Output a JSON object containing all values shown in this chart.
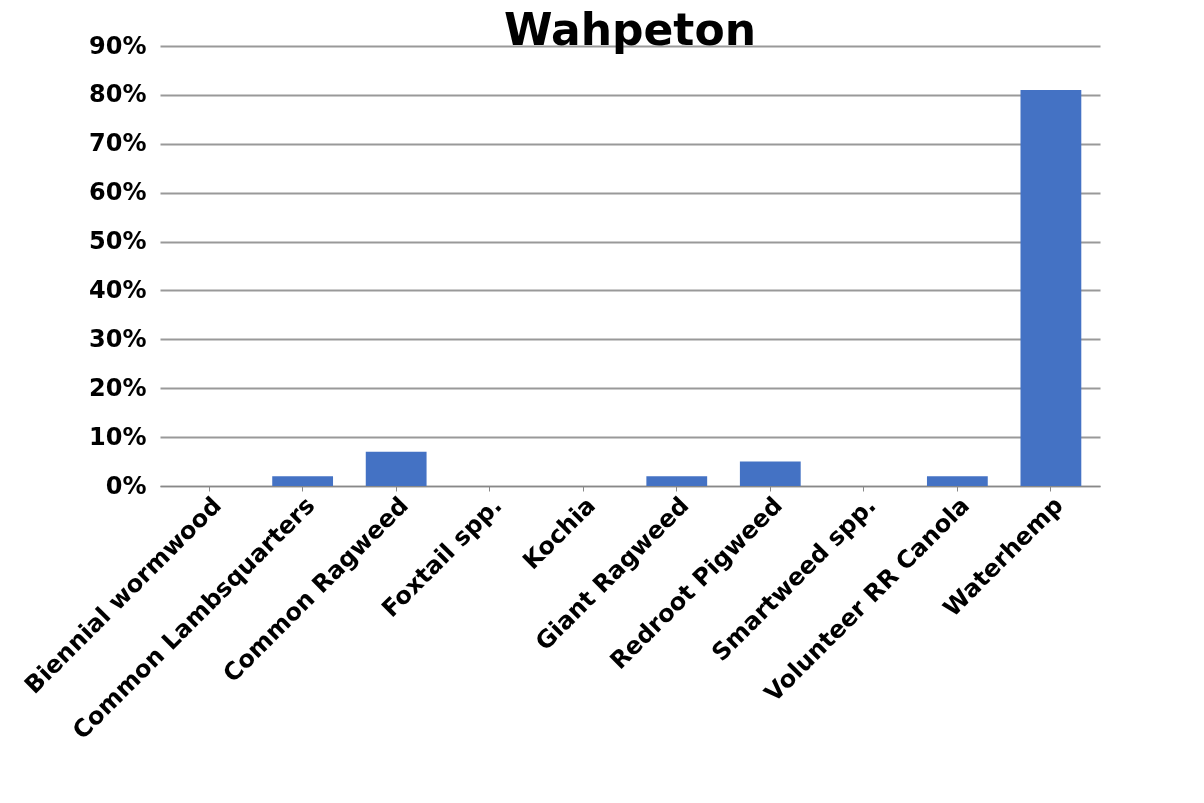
{
  "chart_data": {
    "type": "bar",
    "title": "Wahpeton",
    "categories": [
      "Biennial wormwood",
      "Common Lambsquarters",
      "Common Ragweed",
      "Foxtail spp.",
      "Kochia",
      "Giant Ragweed",
      "Redroot Pigweed",
      "Smartweed spp.",
      "Volunteer RR Canola",
      "Waterhemp"
    ],
    "values": [
      0,
      2,
      7,
      0,
      0,
      2,
      5,
      0,
      2,
      81
    ],
    "color": "#4472c4",
    "ylim": [
      0,
      90
    ],
    "yticks": [
      {
        "value": 0,
        "label": "0%"
      },
      {
        "value": 10,
        "label": "10%"
      },
      {
        "value": 20,
        "label": "20%"
      },
      {
        "value": 30,
        "label": "30%"
      },
      {
        "value": 40,
        "label": "40%"
      },
      {
        "value": 50,
        "label": "50%"
      },
      {
        "value": 60,
        "label": "60%"
      },
      {
        "value": 70,
        "label": "70%"
      },
      {
        "value": 80,
        "label": "80%"
      },
      {
        "value": 90,
        "label": "90%"
      }
    ],
    "grid": "y"
  }
}
